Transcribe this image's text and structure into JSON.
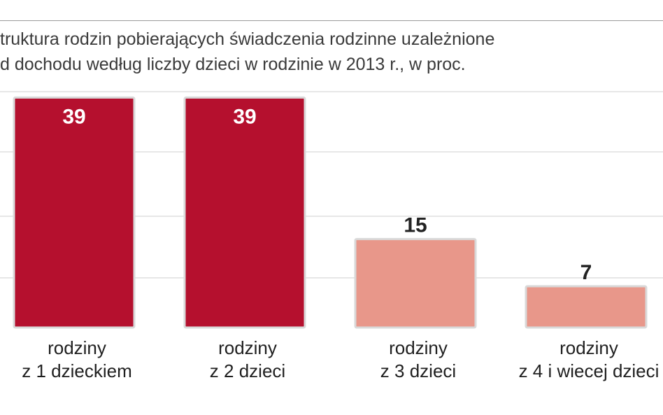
{
  "chart_data": {
    "type": "bar",
    "title_lines": [
      "truktura rodzin pobierających świadczenia rodzinne uzależnione",
      "d dochodu według liczby dzieci w rodzinie w 2013 r., w proc."
    ],
    "categories": [
      [
        "rodziny",
        "z 1 dzieckiem"
      ],
      [
        "rodziny",
        "z 2 dzieci"
      ],
      [
        "rodziny",
        "z 3 dzieci"
      ],
      [
        "rodziny",
        "z 4 i wiecej dzieci"
      ]
    ],
    "values": [
      39,
      39,
      15,
      7
    ],
    "bar_colors": [
      "#b5102e",
      "#b5102e",
      "#e8978a",
      "#e8978a"
    ],
    "label_colors": [
      "#ffffff",
      "#ffffff",
      "#222222",
      "#222222"
    ],
    "ylim": [
      0,
      40
    ],
    "grid": true,
    "legend": "none"
  }
}
